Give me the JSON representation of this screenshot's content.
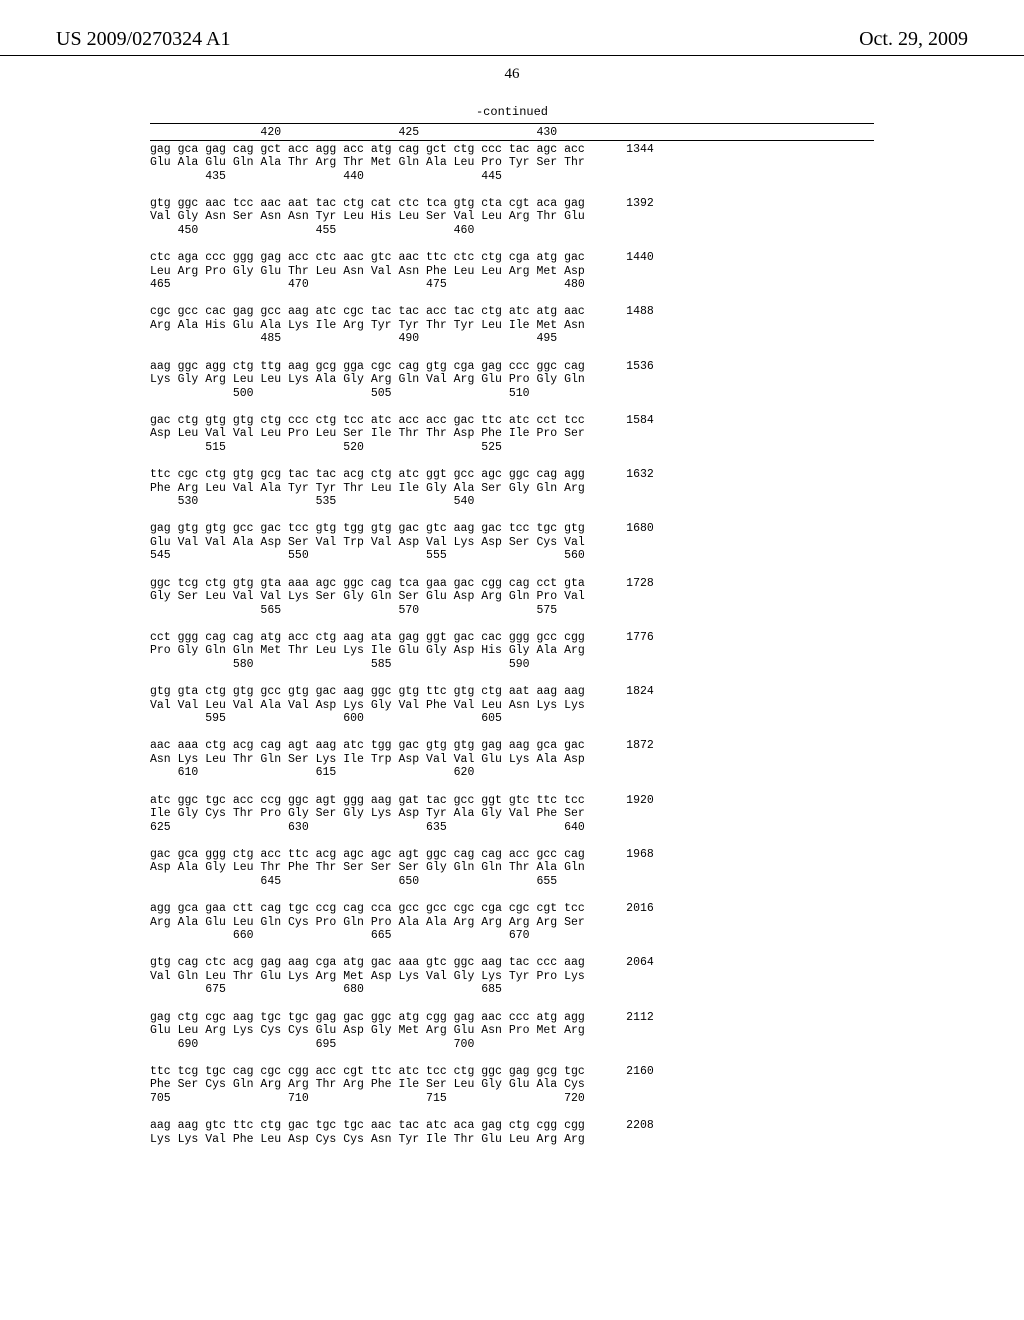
{
  "header": {
    "patent_number": "US 2009/0270324 A1",
    "date": "Oct. 29, 2009"
  },
  "page_number": "46",
  "continued_label": "-continued",
  "header_positions": "                420                 425                 430",
  "sequence_blocks": [
    {
      "nuc": "gag gca gag cag gct acc agg acc atg cag gct ctg ccc tac agc acc      1344",
      "aa": "Glu Ala Glu Gln Ala Thr Arg Thr Met Gln Ala Leu Pro Tyr Ser Thr",
      "pos": "        435                 440                 445"
    },
    {
      "nuc": "gtg ggc aac tcc aac aat tac ctg cat ctc tca gtg cta cgt aca gag      1392",
      "aa": "Val Gly Asn Ser Asn Asn Tyr Leu His Leu Ser Val Leu Arg Thr Glu",
      "pos": "    450                 455                 460"
    },
    {
      "nuc": "ctc aga ccc ggg gag acc ctc aac gtc aac ttc ctc ctg cga atg gac      1440",
      "aa": "Leu Arg Pro Gly Glu Thr Leu Asn Val Asn Phe Leu Leu Arg Met Asp",
      "pos": "465                 470                 475                 480"
    },
    {
      "nuc": "cgc gcc cac gag gcc aag atc cgc tac tac acc tac ctg atc atg aac      1488",
      "aa": "Arg Ala His Glu Ala Lys Ile Arg Tyr Tyr Thr Tyr Leu Ile Met Asn",
      "pos": "                485                 490                 495"
    },
    {
      "nuc": "aag ggc agg ctg ttg aag gcg gga cgc cag gtg cga gag ccc ggc cag      1536",
      "aa": "Lys Gly Arg Leu Leu Lys Ala Gly Arg Gln Val Arg Glu Pro Gly Gln",
      "pos": "            500                 505                 510"
    },
    {
      "nuc": "gac ctg gtg gtg ctg ccc ctg tcc atc acc acc gac ttc atc cct tcc      1584",
      "aa": "Asp Leu Val Val Leu Pro Leu Ser Ile Thr Thr Asp Phe Ile Pro Ser",
      "pos": "        515                 520                 525"
    },
    {
      "nuc": "ttc cgc ctg gtg gcg tac tac acg ctg atc ggt gcc agc ggc cag agg      1632",
      "aa": "Phe Arg Leu Val Ala Tyr Tyr Thr Leu Ile Gly Ala Ser Gly Gln Arg",
      "pos": "    530                 535                 540"
    },
    {
      "nuc": "gag gtg gtg gcc gac tcc gtg tgg gtg gac gtc aag gac tcc tgc gtg      1680",
      "aa": "Glu Val Val Ala Asp Ser Val Trp Val Asp Val Lys Asp Ser Cys Val",
      "pos": "545                 550                 555                 560"
    },
    {
      "nuc": "ggc tcg ctg gtg gta aaa agc ggc cag tca gaa gac cgg cag cct gta      1728",
      "aa": "Gly Ser Leu Val Val Lys Ser Gly Gln Ser Glu Asp Arg Gln Pro Val",
      "pos": "                565                 570                 575"
    },
    {
      "nuc": "cct ggg cag cag atg acc ctg aag ata gag ggt gac cac ggg gcc cgg      1776",
      "aa": "Pro Gly Gln Gln Met Thr Leu Lys Ile Glu Gly Asp His Gly Ala Arg",
      "pos": "            580                 585                 590"
    },
    {
      "nuc": "gtg gta ctg gtg gcc gtg gac aag ggc gtg ttc gtg ctg aat aag aag      1824",
      "aa": "Val Val Leu Val Ala Val Asp Lys Gly Val Phe Val Leu Asn Lys Lys",
      "pos": "        595                 600                 605"
    },
    {
      "nuc": "aac aaa ctg acg cag agt aag atc tgg gac gtg gtg gag aag gca gac      1872",
      "aa": "Asn Lys Leu Thr Gln Ser Lys Ile Trp Asp Val Val Glu Lys Ala Asp",
      "pos": "    610                 615                 620"
    },
    {
      "nuc": "atc ggc tgc acc ccg ggc agt ggg aag gat tac gcc ggt gtc ttc tcc      1920",
      "aa": "Ile Gly Cys Thr Pro Gly Ser Gly Lys Asp Tyr Ala Gly Val Phe Ser",
      "pos": "625                 630                 635                 640"
    },
    {
      "nuc": "gac gca ggg ctg acc ttc acg agc agc agt ggc cag cag acc gcc cag      1968",
      "aa": "Asp Ala Gly Leu Thr Phe Thr Ser Ser Ser Gly Gln Gln Thr Ala Gln",
      "pos": "                645                 650                 655"
    },
    {
      "nuc": "agg gca gaa ctt cag tgc ccg cag cca gcc gcc cgc cga cgc cgt tcc      2016",
      "aa": "Arg Ala Glu Leu Gln Cys Pro Gln Pro Ala Ala Arg Arg Arg Arg Ser",
      "pos": "            660                 665                 670"
    },
    {
      "nuc": "gtg cag ctc acg gag aag cga atg gac aaa gtc ggc aag tac ccc aag      2064",
      "aa": "Val Gln Leu Thr Glu Lys Arg Met Asp Lys Val Gly Lys Tyr Pro Lys",
      "pos": "        675                 680                 685"
    },
    {
      "nuc": "gag ctg cgc aag tgc tgc gag gac ggc atg cgg gag aac ccc atg agg      2112",
      "aa": "Glu Leu Arg Lys Cys Cys Glu Asp Gly Met Arg Glu Asn Pro Met Arg",
      "pos": "    690                 695                 700"
    },
    {
      "nuc": "ttc tcg tgc cag cgc cgg acc cgt ttc atc tcc ctg ggc gag gcg tgc      2160",
      "aa": "Phe Ser Cys Gln Arg Arg Thr Arg Phe Ile Ser Leu Gly Glu Ala Cys",
      "pos": "705                 710                 715                 720"
    },
    {
      "nuc": "aag aag gtc ttc ctg gac tgc tgc aac tac atc aca gag ctg cgg cgg      2208",
      "aa": "Lys Lys Val Phe Leu Asp Cys Cys Asn Tyr Ile Thr Glu Leu Arg Arg",
      "pos": ""
    }
  ]
}
